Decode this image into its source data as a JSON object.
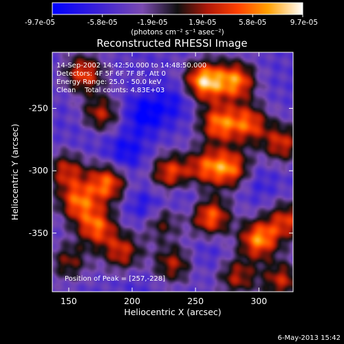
{
  "chart_data": {
    "type": "heatmap",
    "title": "Reconstructed RHESSI Image",
    "xlabel": "Heliocentric X (arcsec)",
    "ylabel": "Heliocentric Y (arcsec)",
    "xlim": [
      137,
      327
    ],
    "ylim": [
      -397,
      -205
    ],
    "x_ticks": [
      150,
      200,
      250,
      300
    ],
    "y_ticks": [
      -250,
      -300,
      -350
    ],
    "colorbar": {
      "min": -9.7e-05,
      "max": 9.7e-05,
      "tick_labels": [
        "-9.7e-05",
        "-5.8e-05",
        "-1.9e-05",
        "1.9e-05",
        "5.8e-05",
        "9.7e-05"
      ],
      "unit_label": "(photons cm⁻² s⁻¹ asec⁻²)"
    },
    "annotations": [
      "14-Sep-2002 14:42:50.000 to 14:48:50.000",
      "Detectors: 4F 5F 6F 7F 8F, Att 0",
      "Energy Range: 25.0 - 50.0 keV",
      "Clean    Total counts: 4.83E+03"
    ],
    "peak_label": "Position of Peak = [257,-228]",
    "peak": [
      257,
      -228
    ],
    "sources": [
      {
        "x": 257,
        "y": -228,
        "v": 9.7e-05
      },
      {
        "x": 282,
        "y": -228,
        "v": 7.5e-05
      },
      {
        "x": 268,
        "y": -262,
        "v": 7e-05
      },
      {
        "x": 292,
        "y": -262,
        "v": 6e-05
      },
      {
        "x": 278,
        "y": -298,
        "v": 6.5e-05
      },
      {
        "x": 258,
        "y": -297,
        "v": 5.2e-05
      },
      {
        "x": 318,
        "y": -278,
        "v": 5e-05
      },
      {
        "x": 300,
        "y": -355,
        "v": 8e-05
      },
      {
        "x": 262,
        "y": -337,
        "v": 7e-05
      },
      {
        "x": 322,
        "y": -340,
        "v": 5e-05
      },
      {
        "x": 318,
        "y": -388,
        "v": 4.5e-05
      },
      {
        "x": 283,
        "y": -385,
        "v": 4e-05
      },
      {
        "x": 230,
        "y": -302,
        "v": 6e-05
      },
      {
        "x": 180,
        "y": -310,
        "v": 7e-05
      },
      {
        "x": 157,
        "y": -325,
        "v": 6.2e-05
      },
      {
        "x": 172,
        "y": -345,
        "v": 6.5e-05
      },
      {
        "x": 148,
        "y": -300,
        "v": 4.5e-05
      },
      {
        "x": 162,
        "y": -222,
        "v": 5.8e-05
      },
      {
        "x": 175,
        "y": -255,
        "v": 4.5e-05
      },
      {
        "x": 192,
        "y": -365,
        "v": 4.8e-05
      },
      {
        "x": 222,
        "y": -340,
        "v": 3.5e-05
      },
      {
        "x": 232,
        "y": -375,
        "v": 4e-05
      },
      {
        "x": 150,
        "y": -373,
        "v": 3e-05
      },
      {
        "x": 210,
        "y": -255,
        "v": -8e-05
      },
      {
        "x": 195,
        "y": -285,
        "v": -7e-05
      },
      {
        "x": 233,
        "y": -245,
        "v": -6e-05
      },
      {
        "x": 212,
        "y": -330,
        "v": -7e-05
      },
      {
        "x": 240,
        "y": -320,
        "v": -5e-05
      },
      {
        "x": 165,
        "y": -270,
        "v": -4e-05
      },
      {
        "x": 300,
        "y": -310,
        "v": -4.5e-05
      },
      {
        "x": 310,
        "y": -225,
        "v": -3e-05
      },
      {
        "x": 150,
        "y": -250,
        "v": -3e-05
      },
      {
        "x": 260,
        "y": -365,
        "v": -4e-05
      },
      {
        "x": 205,
        "y": -390,
        "v": -3.5e-05
      }
    ]
  },
  "footer": {
    "date": "6-May-2013 15:42"
  }
}
